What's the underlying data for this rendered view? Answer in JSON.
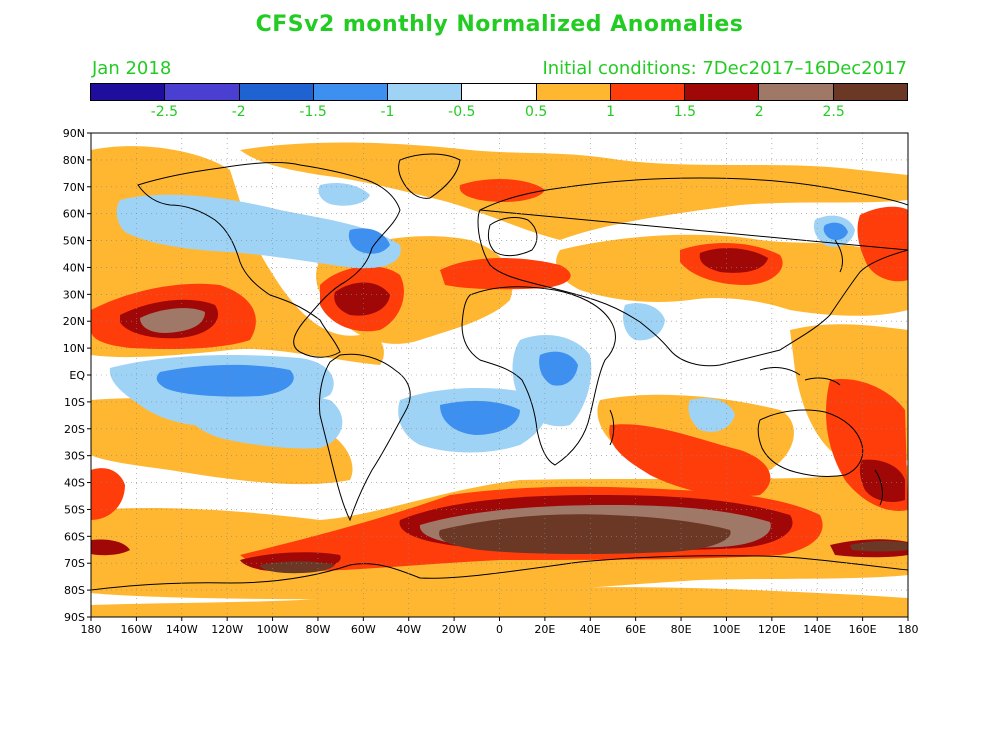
{
  "title": "CFSv2 monthly Normalized Anomalies",
  "month": "Jan 2018",
  "initial_conditions": "Initial conditions: 7Dec2017–16Dec2017",
  "colorbar": {
    "colors": [
      "#1f0e9e",
      "#4a3fd0",
      "#1f63d3",
      "#3d8ff0",
      "#9fd3f6",
      "#ffffff",
      "#ffb732",
      "#ff3d0a",
      "#a00808",
      "#a07868",
      "#6b3826"
    ],
    "labels": [
      "-2.5",
      "-2",
      "-1.5",
      "-1",
      "-0.5",
      "0.5",
      "1",
      "1.5",
      "2",
      "2.5"
    ]
  },
  "axes": {
    "lat_labels": [
      "90N",
      "80N",
      "70N",
      "60N",
      "50N",
      "40N",
      "30N",
      "20N",
      "10N",
      "EQ",
      "10S",
      "20S",
      "30S",
      "40S",
      "50S",
      "60S",
      "70S",
      "80S",
      "90S"
    ],
    "lon_labels": [
      "180",
      "160W",
      "140W",
      "120W",
      "100W",
      "80W",
      "60W",
      "40W",
      "20W",
      "0",
      "20E",
      "40E",
      "60E",
      "80E",
      "100E",
      "120E",
      "140E",
      "160E",
      "180"
    ]
  },
  "anomaly_regions": [
    {
      "name": "southern-ocean-band",
      "value": 2.7,
      "color": "#6b3826"
    },
    {
      "name": "north-pacific-east",
      "value": 2.2,
      "color": "#a07868"
    },
    {
      "name": "north-atlantic-west",
      "value": 1.8,
      "color": "#a00808"
    },
    {
      "name": "equatorial-pacific",
      "value": -1.2,
      "color": "#3d8ff0"
    },
    {
      "name": "south-atlantic",
      "value": -1.0,
      "color": "#9fd3f6"
    },
    {
      "name": "canada",
      "value": -0.8,
      "color": "#9fd3f6"
    },
    {
      "name": "east-asia",
      "value": 1.8,
      "color": "#a00808"
    },
    {
      "name": "indian-ocean-south",
      "value": 1.4,
      "color": "#ff3d0a"
    },
    {
      "name": "tasman-sea",
      "value": 1.6,
      "color": "#ff3d0a"
    }
  ]
}
